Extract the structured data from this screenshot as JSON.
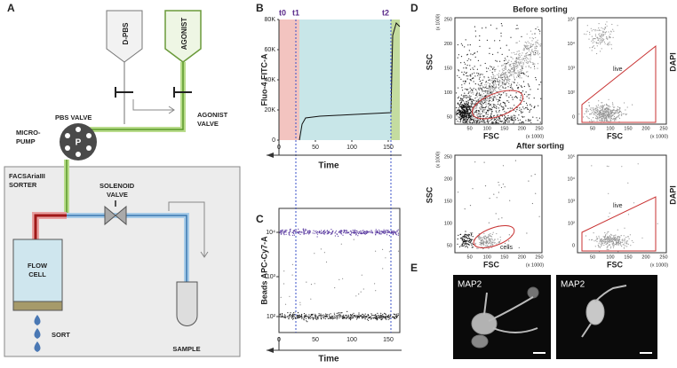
{
  "panels": {
    "a": {
      "label": "A",
      "d_pbs": "D-PBS",
      "agonist": "AGONIST",
      "pbs_valve": "PBS VALVE",
      "agonist_valve": [
        "AGONIST",
        "VALVE"
      ],
      "micro_pump": [
        "MICRO-",
        "PUMP"
      ],
      "pump": "P",
      "sorter": [
        "FACSAriaIII",
        "SORTER"
      ],
      "solenoid_valve": [
        "SOLENOID",
        "VALVE"
      ],
      "flow_cell": [
        "FLOW",
        "CELL"
      ],
      "sort": "SORT",
      "sample": "SAMPLE"
    },
    "b": {
      "label": "B",
      "markers": [
        "t0",
        "t1",
        "t2"
      ],
      "y_label": "Fluo-4 FITC-A",
      "y_ticks": [
        "80K",
        "60K",
        "40K",
        "20K",
        0
      ],
      "x_ticks": [
        0,
        50,
        100,
        150
      ],
      "x_label": "Time"
    },
    "c": {
      "label": "C",
      "y_label": "Beads APC-Cy7-A",
      "y_ticks": [
        "10⁴",
        "10³",
        "10²"
      ],
      "x_ticks": [
        0,
        50,
        100,
        150
      ],
      "x_label": "Time"
    },
    "d": {
      "label": "D",
      "before": "Before sorting",
      "after": "After sorting",
      "ssc": "SSC",
      "fsc": "FSC",
      "dapi": "DAPI",
      "scale": "(x 1000)",
      "linear_ticks": [
        250,
        200,
        150,
        100,
        50
      ],
      "log_ticks": [
        "10⁵",
        "10⁴",
        "10³",
        "10²",
        0
      ],
      "cells": "cells",
      "live": "live"
    },
    "e": {
      "label": "E",
      "stain": [
        "MAP2",
        "MAP2"
      ]
    }
  }
}
